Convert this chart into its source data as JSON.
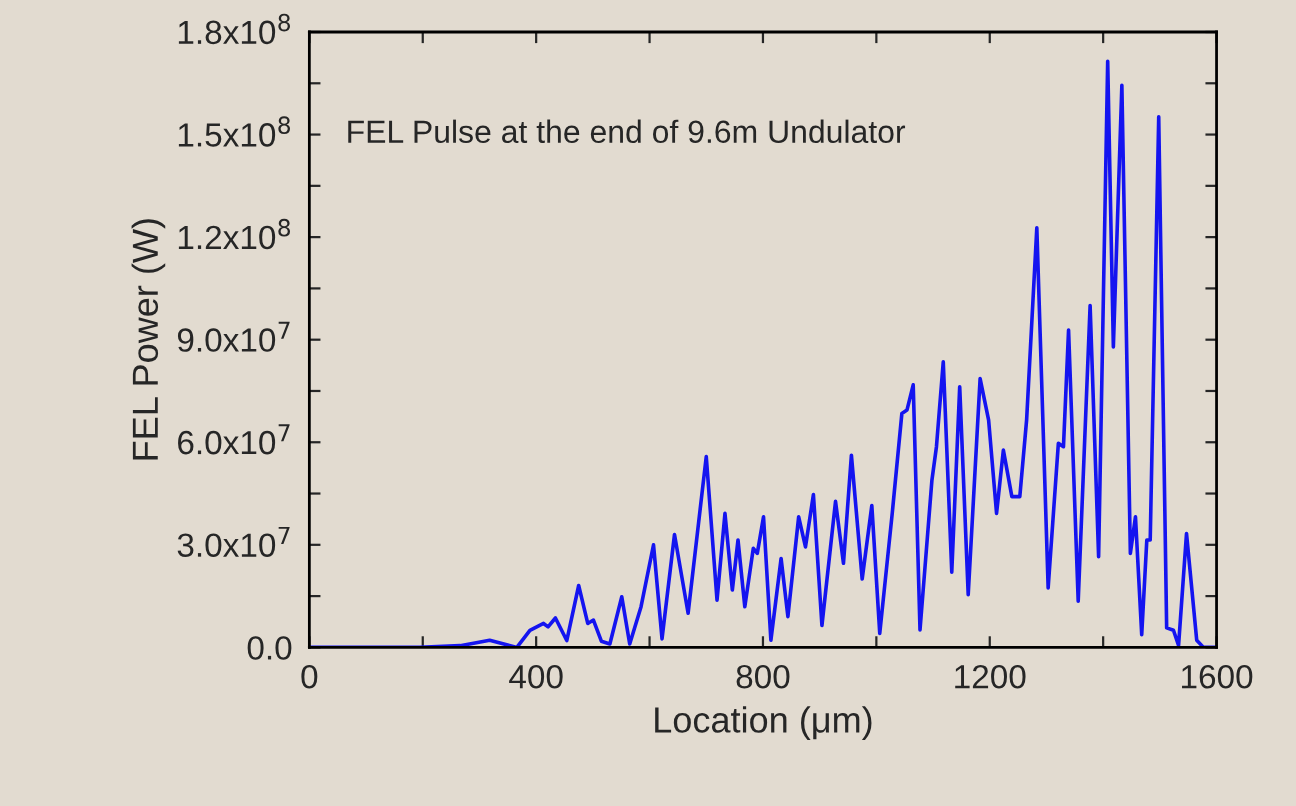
{
  "chart_data": {
    "type": "line",
    "xlabel": "Location (μm)",
    "ylabel": "FEL Power (W)",
    "annotations": [
      "FEL Pulse at the end of 9.6m Undulator"
    ],
    "xlim": [
      0,
      1600
    ],
    "ylim": [
      0,
      180000000
    ],
    "xticks": [
      0,
      {
        "value": 200,
        "label": null
      },
      400,
      {
        "value": 600,
        "label": null
      },
      800,
      {
        "value": 1000,
        "label": null
      },
      1200,
      {
        "value": 1400,
        "label": null
      },
      1600
    ],
    "yticks": [
      {
        "value": 0,
        "label": "0.0"
      },
      {
        "value": 15000000,
        "label": null
      },
      {
        "value": 30000000,
        "label": "3.0x10$^{7}$"
      },
      {
        "value": 45000000,
        "label": null
      },
      {
        "value": 60000000,
        "label": "6.0x10$^{7}$"
      },
      {
        "value": 75000000,
        "label": null
      },
      {
        "value": 90000000,
        "label": "9.0x10$^{7}$"
      },
      {
        "value": 105000000,
        "label": null
      },
      {
        "value": 120000000,
        "label": "1.2x10$^{8}$"
      },
      {
        "value": 135000000,
        "label": null
      },
      {
        "value": 150000000,
        "label": "1.5x10$^{8}$"
      },
      {
        "value": 165000000,
        "label": null
      },
      {
        "value": 180000000,
        "label": "1.8x10$^{8}$"
      }
    ],
    "grid": false,
    "marker": "none",
    "line_style": "solid",
    "series": [
      {
        "color": "#1414f0",
        "x": [
          0,
          195,
          266,
          318,
          366,
          389,
          413,
          421,
          434,
          454,
          475,
          491,
          501,
          515,
          530,
          551,
          565,
          585,
          607,
          622,
          644,
          668,
          700,
          719,
          733,
          746,
          756,
          768,
          783,
          790,
          801,
          814,
          832,
          844,
          863,
          875,
          889,
          904,
          928,
          942,
          956,
          975,
          992,
          1006,
          1028,
          1045,
          1054,
          1065,
          1077,
          1098,
          1106,
          1118,
          1133,
          1147,
          1162,
          1183,
          1198,
          1212,
          1224,
          1239,
          1253,
          1265,
          1283,
          1303,
          1321,
          1330,
          1339,
          1356,
          1377,
          1392,
          1408,
          1418,
          1433,
          1448,
          1457,
          1468,
          1477,
          1483,
          1498,
          1512,
          1524,
          1533,
          1547,
          1565,
          1577,
          1600
        ],
        "values": [
          0,
          0,
          500000,
          2100000,
          0,
          5000000,
          7000000,
          6000000,
          8600000,
          2000000,
          18100000,
          7000000,
          8000000,
          1800000,
          1000000,
          14800000,
          1000000,
          11900000,
          30000000,
          2500000,
          33000000,
          10000000,
          55800000,
          13800000,
          39200000,
          16800000,
          31400000,
          11900000,
          29000000,
          27500000,
          38200000,
          2100000,
          26000000,
          9000000,
          38200000,
          29400000,
          44700000,
          6400000,
          42700000,
          24600000,
          56200000,
          20000000,
          41500000,
          4100000,
          39200000,
          68400000,
          69400000,
          76800000,
          5100000,
          48900000,
          58700000,
          83500000,
          22000000,
          76200000,
          15400000,
          78600000,
          66500000,
          39200000,
          57700000,
          44100000,
          44100000,
          66500000,
          122700000,
          17400000,
          59700000,
          58700000,
          92800000,
          13500000,
          100000000,
          26500000,
          171400000,
          87900000,
          164400000,
          27500000,
          38200000,
          3700000,
          31400000,
          31400000,
          155200000,
          5700000,
          5000000,
          600000,
          33300000,
          2100000,
          0,
          0
        ]
      }
    ]
  }
}
